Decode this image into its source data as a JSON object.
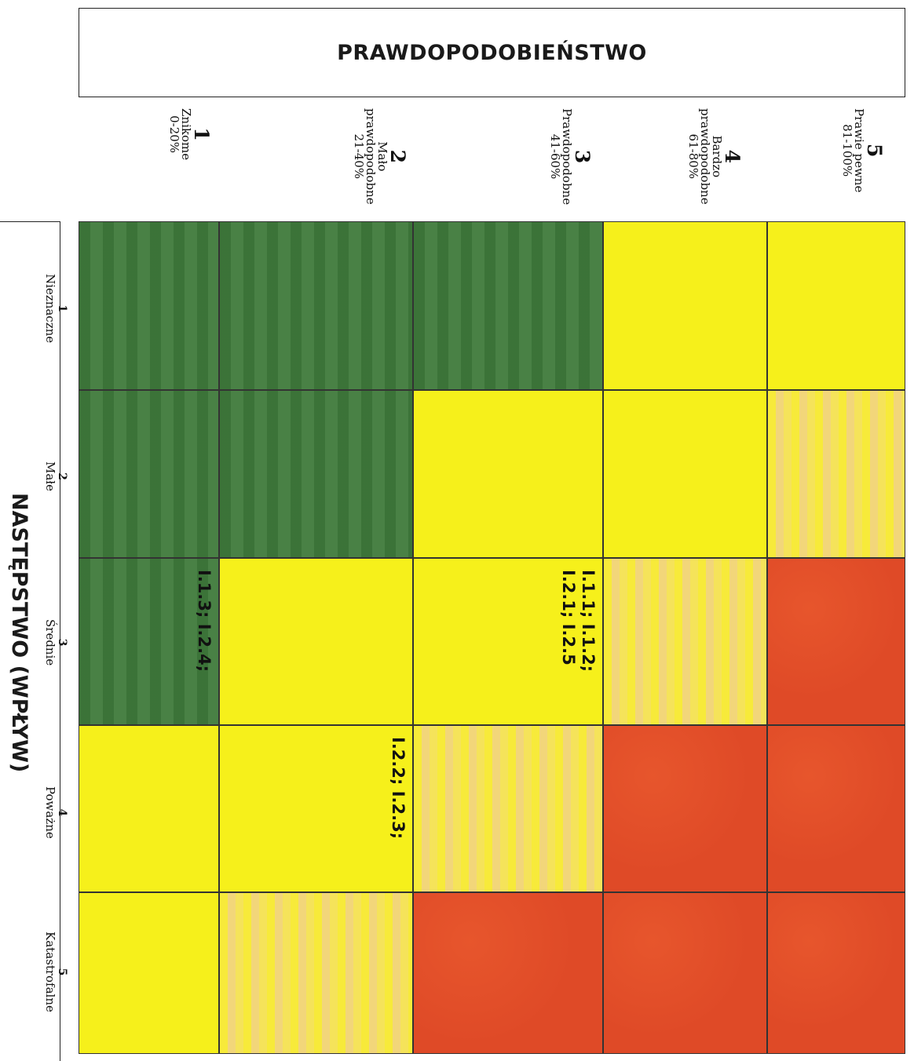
{
  "probability": {
    "title": "PRAWDOPODOBIEŃSTWO",
    "levels": [
      {
        "num": "1",
        "label1": "Znikome",
        "label2": "0-20%",
        "label3": ""
      },
      {
        "num": "2",
        "label1": "Mało",
        "label2": "prawdopodobne",
        "label3": "21-40%"
      },
      {
        "num": "3",
        "label1": "Prawdopodobne",
        "label2": "41-60%",
        "label3": ""
      },
      {
        "num": "4",
        "label1": "Bardzo",
        "label2": "prawdopodobne",
        "label3": "61-80%"
      },
      {
        "num": "5",
        "label1": "Prawie pewne",
        "label2": "81-100%",
        "label3": ""
      }
    ]
  },
  "impact": {
    "title": "NASTĘPSTWO (WPŁYW)",
    "levels": [
      {
        "num": "1",
        "label": "Nieznaczne"
      },
      {
        "num": "2",
        "label": "Małe"
      },
      {
        "num": "3",
        "label": "Średnie"
      },
      {
        "num": "4",
        "label": "Poważne"
      },
      {
        "num": "5",
        "label": "Katastrofalne"
      }
    ]
  },
  "colors": {
    "green": "#3f7a3b",
    "yellow": "#f6f01b",
    "pale_yellow": "#f2d67a",
    "red": "#df4a27"
  },
  "matrix": {
    "cells": [
      {
        "prob": 1,
        "impact": 1,
        "color": "green",
        "text": ""
      },
      {
        "prob": 2,
        "impact": 1,
        "color": "green",
        "text": ""
      },
      {
        "prob": 3,
        "impact": 1,
        "color": "green",
        "text": ""
      },
      {
        "prob": 4,
        "impact": 1,
        "color": "yellow",
        "text": ""
      },
      {
        "prob": 5,
        "impact": 1,
        "color": "yellow",
        "text": ""
      },
      {
        "prob": 1,
        "impact": 2,
        "color": "green",
        "text": ""
      },
      {
        "prob": 2,
        "impact": 2,
        "color": "green",
        "text": ""
      },
      {
        "prob": 3,
        "impact": 2,
        "color": "yellow",
        "text": ""
      },
      {
        "prob": 4,
        "impact": 2,
        "color": "yellow",
        "text": ""
      },
      {
        "prob": 5,
        "impact": 2,
        "color": "pale_yellow",
        "text": ""
      },
      {
        "prob": 1,
        "impact": 3,
        "color": "green",
        "text": "I.1.3; I.2.4;"
      },
      {
        "prob": 2,
        "impact": 3,
        "color": "yellow",
        "text": ""
      },
      {
        "prob": 3,
        "impact": 3,
        "color": "yellow",
        "text": "I.1.1; I.1.2;\nI.2.1; I.2.5"
      },
      {
        "prob": 4,
        "impact": 3,
        "color": "pale_yellow",
        "text": ""
      },
      {
        "prob": 5,
        "impact": 3,
        "color": "red",
        "text": ""
      },
      {
        "prob": 1,
        "impact": 4,
        "color": "yellow",
        "text": ""
      },
      {
        "prob": 2,
        "impact": 4,
        "color": "yellow",
        "text": "I.2.2; I.2.3;"
      },
      {
        "prob": 3,
        "impact": 4,
        "color": "pale_yellow",
        "text": ""
      },
      {
        "prob": 4,
        "impact": 4,
        "color": "red",
        "text": ""
      },
      {
        "prob": 5,
        "impact": 4,
        "color": "red",
        "text": ""
      },
      {
        "prob": 1,
        "impact": 5,
        "color": "yellow",
        "text": ""
      },
      {
        "prob": 2,
        "impact": 5,
        "color": "pale_yellow",
        "text": ""
      },
      {
        "prob": 3,
        "impact": 5,
        "color": "red",
        "text": ""
      },
      {
        "prob": 4,
        "impact": 5,
        "color": "red",
        "text": ""
      },
      {
        "prob": 5,
        "impact": 5,
        "color": "red",
        "text": ""
      }
    ]
  }
}
